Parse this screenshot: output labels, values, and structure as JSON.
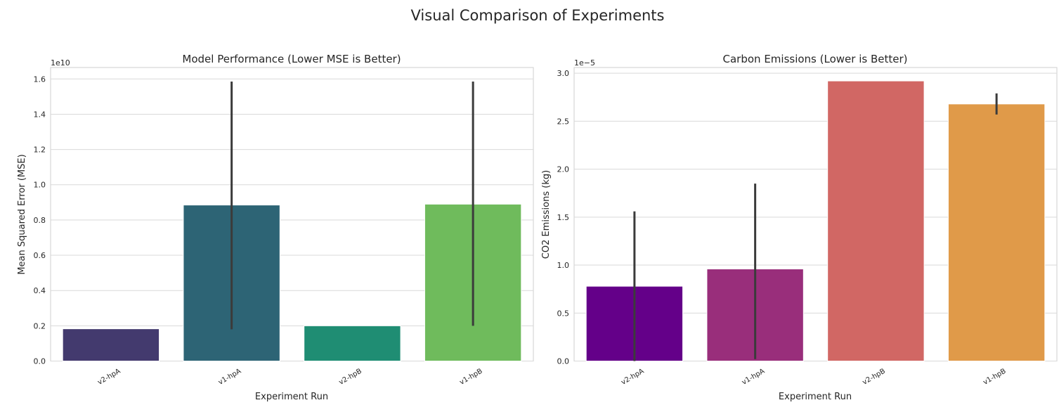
{
  "figure": {
    "title": "Visual Comparison of Experiments"
  },
  "chart_data": [
    {
      "type": "bar",
      "title": "Model Performance (Lower MSE is Better)",
      "xlabel": "Experiment Run",
      "ylabel": "Mean Squared Error (MSE)",
      "offset_label": "1e10",
      "scale": 10000000000.0,
      "categories": [
        "v2-hpA",
        "v1-hpA",
        "v2-hpB",
        "v1-hpB"
      ],
      "values": [
        1830000000.0,
        8850000000.0,
        2000000000.0,
        8900000000.0
      ],
      "error_low": [
        null,
        1800000000.0,
        null,
        2000000000.0
      ],
      "error_high": [
        null,
        15850000000.0,
        null,
        15850000000.0
      ],
      "colors": [
        "#433a6e",
        "#2d6475",
        "#1f8d73",
        "#6fbb5c"
      ],
      "ylim": [
        0,
        16650000000.0
      ],
      "yticks": [
        0.0,
        0.2,
        0.4,
        0.6,
        0.8,
        1.0,
        1.2,
        1.4,
        1.6
      ],
      "grid": true
    },
    {
      "type": "bar",
      "title": "Carbon Emissions (Lower is Better)",
      "xlabel": "Experiment Run",
      "ylabel": "CO2 Emissions (kg)",
      "offset_label": "1e−5",
      "scale": 1e-05,
      "categories": [
        "v2-hpA",
        "v1-hpA",
        "v2-hpB",
        "v1-hpB"
      ],
      "values": [
        7.8e-06,
        9.6e-06,
        2.92e-05,
        2.68e-05
      ],
      "error_low": [
        0.0,
        2e-07,
        null,
        2.57e-05
      ],
      "error_high": [
        1.56e-05,
        1.85e-05,
        null,
        2.79e-05
      ],
      "colors": [
        "#640089",
        "#992e7b",
        "#d16764",
        "#e09a49"
      ],
      "ylim": [
        0,
        3.06e-05
      ],
      "yticks": [
        0.0,
        0.5,
        1.0,
        1.5,
        2.0,
        2.5,
        3.0
      ],
      "grid": true
    }
  ]
}
